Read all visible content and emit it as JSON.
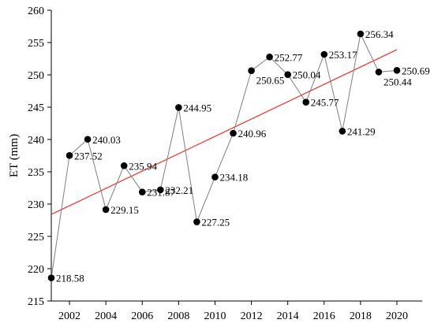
{
  "chart_data": {
    "type": "line",
    "title": "",
    "xlabel": "",
    "ylabel": "ET (mm)",
    "xlim": [
      2001,
      2020
    ],
    "ylim": [
      215,
      260
    ],
    "grid": false,
    "x_ticks": [
      2002,
      2004,
      2006,
      2008,
      2010,
      2012,
      2014,
      2016,
      2018,
      2020
    ],
    "y_ticks": [
      215,
      220,
      225,
      230,
      235,
      240,
      245,
      250,
      255,
      260
    ],
    "series": [
      {
        "x": [
          2001,
          2002,
          2003,
          2004,
          2005,
          2006,
          2007,
          2008,
          2009,
          2010,
          2011,
          2012,
          2013,
          2014,
          2015,
          2016,
          2017,
          2018,
          2019,
          2020
        ],
        "values": [
          218.58,
          237.52,
          240.03,
          229.15,
          235.94,
          231.87,
          232.21,
          244.95,
          227.25,
          234.18,
          240.96,
          250.65,
          252.77,
          250.04,
          245.77,
          253.17,
          241.29,
          256.34,
          250.44,
          250.69
        ],
        "labels": [
          "218.58",
          "237.52",
          "240.03",
          "229.15",
          "235.94",
          "231.87",
          "232.21",
          "244.95",
          "227.25",
          "234.18",
          "240.96",
          "250.65",
          "252.77",
          "250.04",
          "245.77",
          "253.17",
          "241.29",
          "256.34",
          "250.44",
          "250.69"
        ],
        "color": "#7f7f7f",
        "marker_color": "#000000"
      }
    ],
    "trendline": {
      "type": "linear",
      "color": "#e8413c",
      "x": [
        2001,
        2020
      ],
      "values": [
        228.4,
        253.9
      ]
    }
  }
}
